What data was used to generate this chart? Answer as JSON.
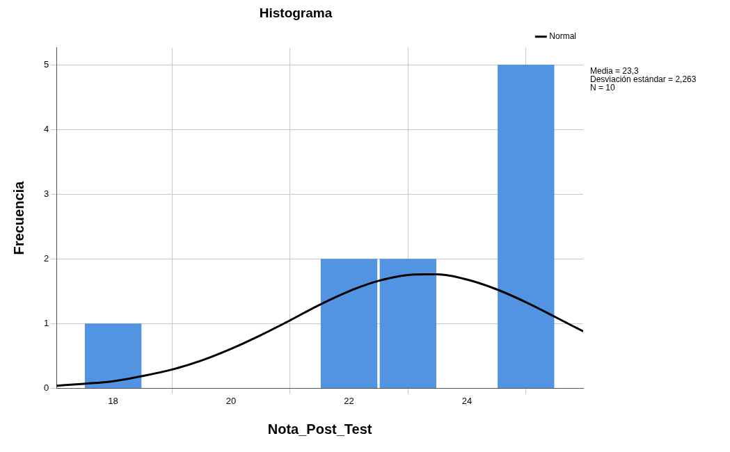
{
  "chart_data": {
    "type": "histogram",
    "title": "Histograma",
    "xlabel": "Nota_Post_Test",
    "ylabel": "Frecuencia",
    "bins": [
      17.5,
      18.5,
      19.5,
      20.5,
      21.5,
      22.5,
      23.5,
      24.5,
      25.5
    ],
    "values": [
      1,
      0,
      0,
      0,
      2,
      2,
      0,
      5
    ],
    "color": "#5294e2",
    "series": [
      {
        "name": "Normal",
        "type": "line",
        "color": "#000000",
        "x": [
          17.04,
          17.5,
          18,
          18.5,
          19,
          19.5,
          20,
          20.5,
          21,
          21.5,
          22,
          22.5,
          23,
          23.3,
          23.5,
          24,
          24.5,
          25,
          25.5,
          25.97
        ],
        "values": [
          0.04,
          0.07,
          0.11,
          0.19,
          0.29,
          0.43,
          0.61,
          0.82,
          1.05,
          1.29,
          1.5,
          1.66,
          1.75,
          1.76,
          1.76,
          1.68,
          1.53,
          1.33,
          1.1,
          0.88
        ]
      }
    ],
    "annotations": [
      "Media = 23,3",
      "Desviación estándar = 2,263",
      "N = 10"
    ],
    "xlim": [
      17.04,
      25.97
    ],
    "xticks": [
      18,
      20,
      22,
      24
    ],
    "ylim": [
      0,
      5.26
    ],
    "yticks": [
      0,
      1,
      2,
      3,
      4,
      5
    ],
    "grid": true,
    "legend": "top right",
    "marker": "none",
    "line_style": "solid"
  }
}
